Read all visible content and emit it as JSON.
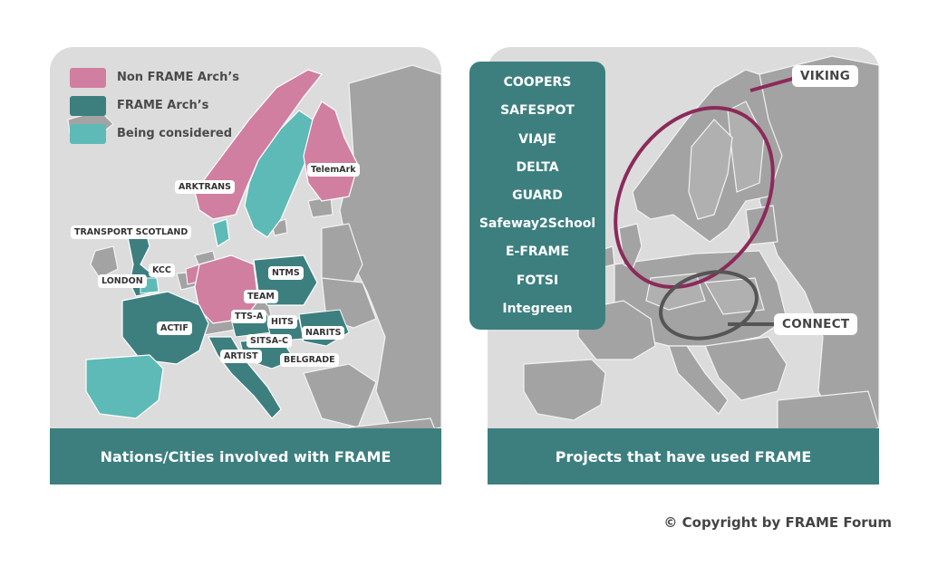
{
  "legend": [
    {
      "label": "Non FRAME Arch’s",
      "color": "#d07fa1"
    },
    {
      "label": "FRAME Arch’s",
      "color": "#3d7f7f"
    },
    {
      "label": "Being considered",
      "color": "#5ebab6"
    }
  ],
  "left_panel": {
    "footer": "Nations/Cities involved with FRAME",
    "labels": {
      "arktrans": "ARKTRANS",
      "telemark": "TelemArk",
      "transport_scotland": "TRANSPORT SCOTLAND",
      "kcc": "KCC",
      "london": "LONDON",
      "ntms": "NTMS",
      "team": "TEAM",
      "tts_a": "TTS-A",
      "hits": "HITS",
      "actif": "ACTIF",
      "narits": "NARITS",
      "sitsa_c": "SITSA-C",
      "artist": "ARTIST",
      "belgrade": "BELGRADE"
    }
  },
  "right_panel": {
    "footer": "Projects that have used FRAME",
    "projects": [
      "COOPERS",
      "SAFESPOT",
      "VIAJE",
      "DELTA",
      "GUARD",
      "Safeway2School",
      "E-FRAME",
      "FOTSI",
      "Integreen"
    ],
    "callouts": {
      "viking": "VIKING",
      "connect": "CONNECT"
    },
    "viking_color": "#8b2a5a",
    "connect_color": "#555555"
  },
  "copyright": "© Copyright by FRAME Forum"
}
